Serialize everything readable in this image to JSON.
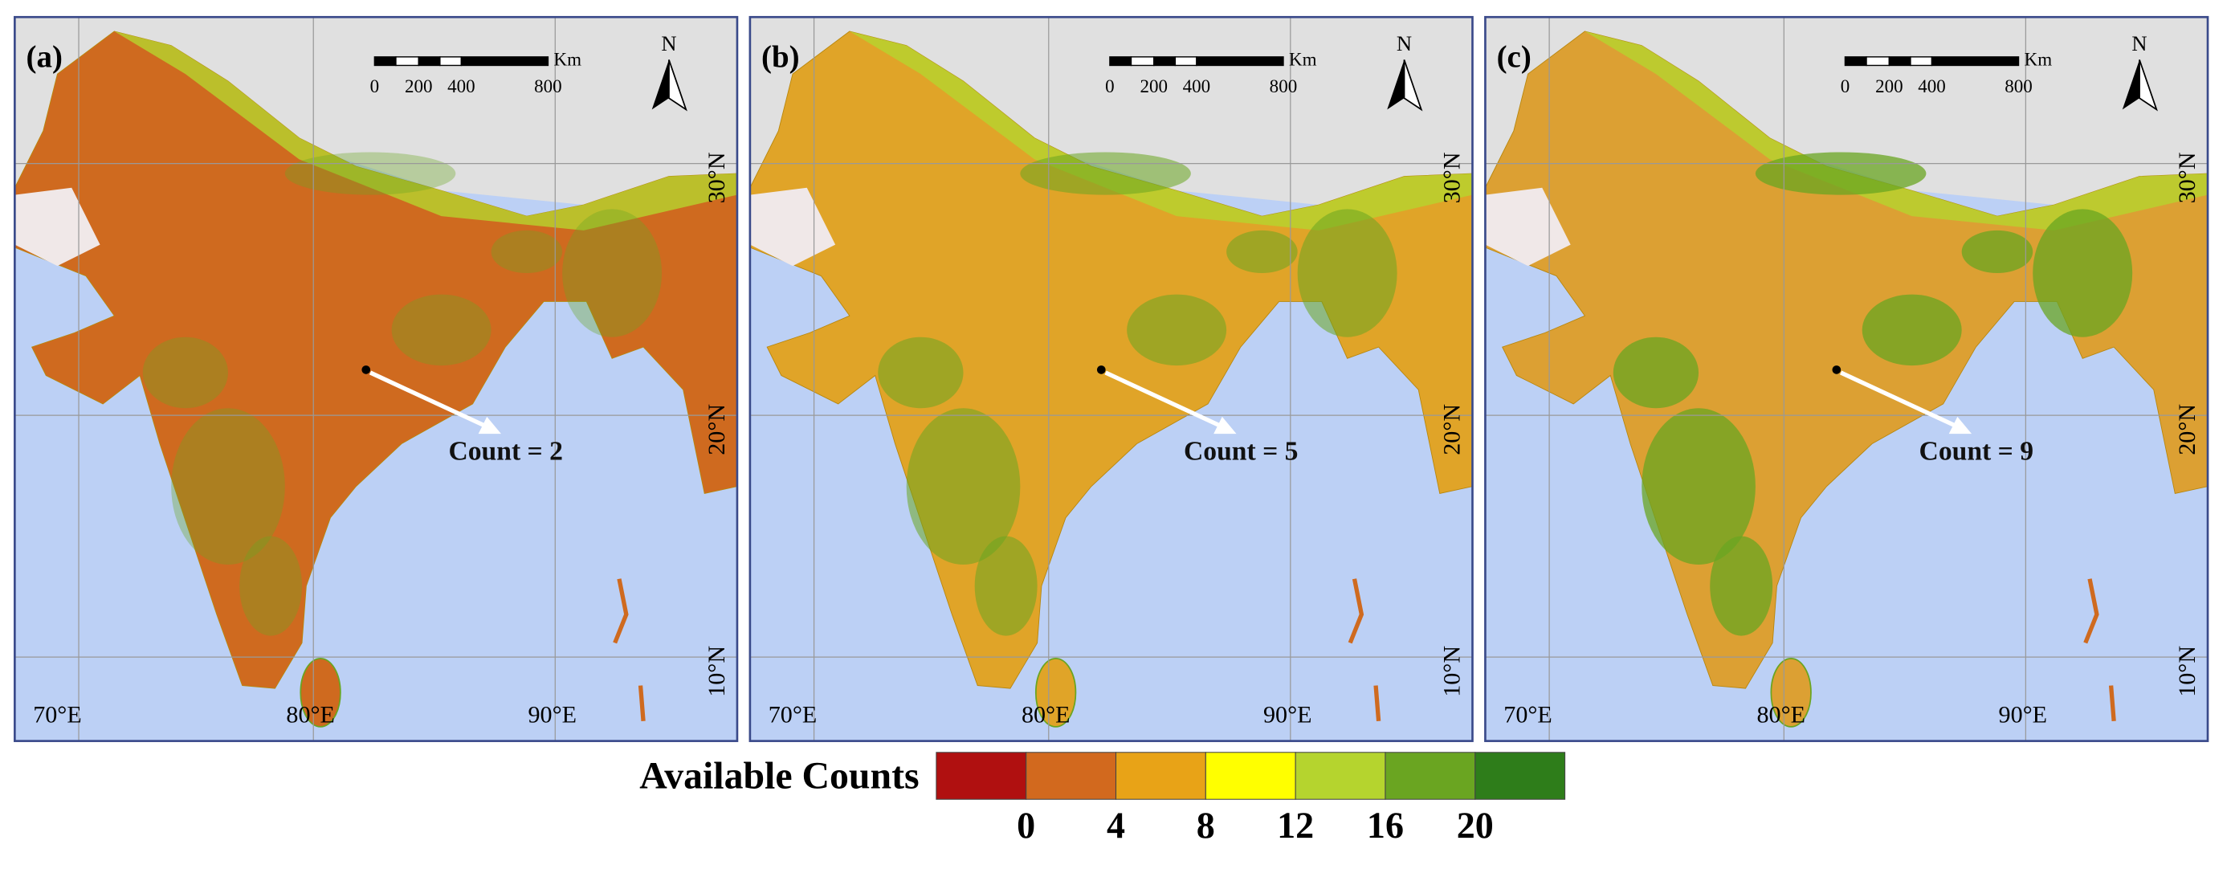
{
  "panels": [
    {
      "label": "(a)",
      "annotation": "Count = 2"
    },
    {
      "label": "(b)",
      "annotation": "Count = 5"
    },
    {
      "label": "(c)",
      "annotation": "Count = 9"
    }
  ],
  "scale_bar": {
    "unit": "Km",
    "labels": [
      "0",
      "200",
      "400",
      "800"
    ]
  },
  "north": "N",
  "latitudes": [
    "30°N",
    "20°N",
    "10°N"
  ],
  "longitudes": [
    "70°E",
    "80°E",
    "90°E"
  ],
  "legend": {
    "title": "Available Counts",
    "colors": [
      "#b01010",
      "#d2691e",
      "#e8a317",
      "#ffff00",
      "#b5d42e",
      "#6aa521",
      "#2e7d1a"
    ],
    "ticks": [
      0,
      4,
      8,
      12,
      16,
      20
    ]
  }
}
